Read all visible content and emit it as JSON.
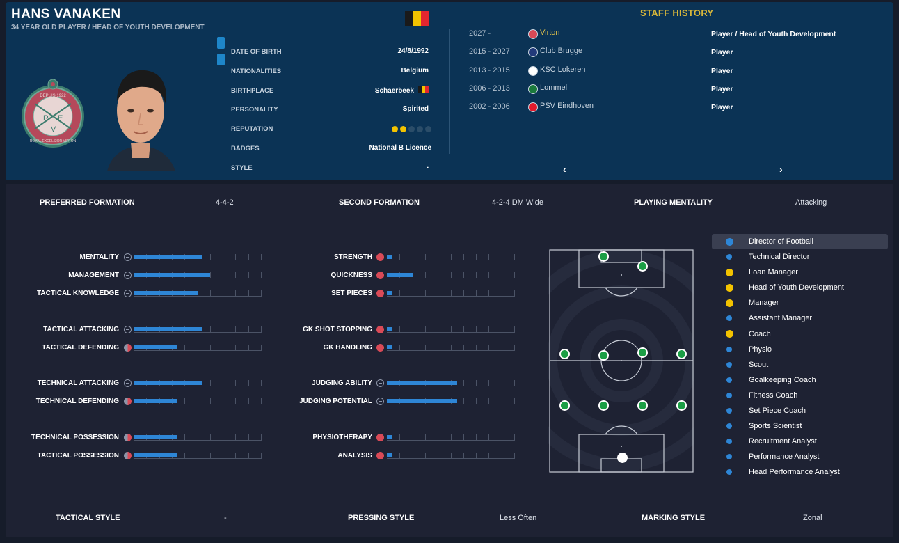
{
  "player": {
    "name": "HANS VANAKEN",
    "subtitle": "34 YEAR OLD PLAYER / HEAD OF YOUTH DEVELOPMENT"
  },
  "club_badge": {
    "icon": "club-crest-icon",
    "top_text": "DEPUIS 1922",
    "bottom_text": "ROYAL EXCELSIOR VIRTON",
    "letters": [
      "R",
      "E",
      "V"
    ],
    "colors": {
      "ring": "#3c7c6d",
      "inner": "#b5495b"
    }
  },
  "flag_colors": [
    "#1a1a1a",
    "#f2c200",
    "#e3262f"
  ],
  "bio": [
    {
      "label": "DATE OF BIRTH",
      "value": "24/8/1992"
    },
    {
      "label": "NATIONALITIES",
      "value": "Belgium"
    },
    {
      "label": "BIRTHPLACE",
      "value": "Schaerbeek"
    },
    {
      "label": "PERSONALITY",
      "value": "Spirited"
    },
    {
      "label": "REPUTATION",
      "value": "",
      "stars_on": 2,
      "stars_total": 5
    },
    {
      "label": "BADGES",
      "value": "National B Licence"
    },
    {
      "label": "STYLE",
      "value": "-"
    }
  ],
  "history": {
    "title": "STAFF HISTORY",
    "rows": [
      {
        "years": "2027 -",
        "club": "Virton",
        "role": "Player / Head of Youth Development",
        "crest": "#d94a57",
        "current": true
      },
      {
        "years": "2015 - 2027",
        "club": "Club Brugge",
        "role": "Player",
        "crest": "#223a7a",
        "current": false
      },
      {
        "years": "2013 - 2015",
        "club": "KSC Lokeren",
        "role": "Player",
        "crest": "#ffffff",
        "current": false
      },
      {
        "years": "2006 - 2013",
        "club": "Lommel",
        "role": "Player",
        "crest": "#1b7a3c",
        "current": false
      },
      {
        "years": "2002 - 2006",
        "club": "PSV Eindhoven",
        "role": "Player",
        "crest": "#e21b2c",
        "current": false
      }
    ],
    "prev_icon": "‹",
    "next_icon": "›"
  },
  "summary": {
    "preferred_formation_label": "PREFERRED FORMATION",
    "preferred_formation": "4-4-2",
    "second_formation_label": "SECOND FORMATION",
    "second_formation": "4-2-4 DM Wide",
    "playing_mentality_label": "PLAYING MENTALITY",
    "playing_mentality": "Attacking",
    "tactical_style_label": "TACTICAL STYLE",
    "tactical_style": "-",
    "pressing_style_label": "PRESSING STYLE",
    "pressing_style": "Less Often",
    "marking_style_label": "MARKING STYLE",
    "marking_style": "Zonal"
  },
  "attributes_left": [
    {
      "label": "MENTALITY",
      "level": 0.53,
      "icon": "neutral"
    },
    {
      "label": "MANAGEMENT",
      "level": 0.6,
      "icon": "neutral"
    },
    {
      "label": "TACTICAL KNOWLEDGE",
      "level": 0.5,
      "icon": "neutral"
    },
    {
      "label": "TACTICAL ATTACKING",
      "level": 0.53,
      "icon": "neutral"
    },
    {
      "label": "TACTICAL DEFENDING",
      "level": 0.34,
      "icon": "half"
    },
    {
      "label": "TECHNICAL ATTACKING",
      "level": 0.53,
      "icon": "neutral"
    },
    {
      "label": "TECHNICAL DEFENDING",
      "level": 0.34,
      "icon": "half"
    },
    {
      "label": "TECHNICAL POSSESSION",
      "level": 0.34,
      "icon": "half"
    },
    {
      "label": "TACTICAL POSSESSION",
      "level": 0.34,
      "icon": "half"
    }
  ],
  "attributes_right": [
    {
      "label": "STRENGTH",
      "level": 0.04,
      "icon": "red"
    },
    {
      "label": "QUICKNESS",
      "level": 0.2,
      "icon": "red"
    },
    {
      "label": "SET PIECES",
      "level": 0.04,
      "icon": "red"
    },
    {
      "label": "GK SHOT STOPPING",
      "level": 0.04,
      "icon": "red"
    },
    {
      "label": "GK HANDLING",
      "level": 0.04,
      "icon": "red"
    },
    {
      "label": "JUDGING ABILITY",
      "level": 0.55,
      "icon": "neutral"
    },
    {
      "label": "JUDGING POTENTIAL",
      "level": 0.55,
      "icon": "neutral"
    },
    {
      "label": "PHYSIOTHERAPY",
      "level": 0.04,
      "icon": "red"
    },
    {
      "label": "ANALYSIS",
      "level": 0.04,
      "icon": "red"
    }
  ],
  "roles": [
    {
      "label": "Director of Football",
      "selected": true,
      "color": "#2e86d6",
      "big": true
    },
    {
      "label": "Technical Director",
      "selected": false,
      "color": "#2e86d6",
      "big": false
    },
    {
      "label": "Loan Manager",
      "selected": false,
      "color": "#f3c300",
      "big": true
    },
    {
      "label": "Head of Youth Development",
      "selected": false,
      "color": "#f3c300",
      "big": true
    },
    {
      "label": "Manager",
      "selected": false,
      "color": "#f3c300",
      "big": true
    },
    {
      "label": "Assistant Manager",
      "selected": false,
      "color": "#2e86d6",
      "big": false
    },
    {
      "label": "Coach",
      "selected": false,
      "color": "#f3c300",
      "big": true
    },
    {
      "label": "Physio",
      "selected": false,
      "color": "#2e86d6",
      "big": false
    },
    {
      "label": "Scout",
      "selected": false,
      "color": "#2e86d6",
      "big": false
    },
    {
      "label": "Goalkeeping Coach",
      "selected": false,
      "color": "#2e86d6",
      "big": false
    },
    {
      "label": "Fitness Coach",
      "selected": false,
      "color": "#2e86d6",
      "big": false
    },
    {
      "label": "Set Piece Coach",
      "selected": false,
      "color": "#2e86d6",
      "big": false
    },
    {
      "label": "Sports Scientist",
      "selected": false,
      "color": "#2e86d6",
      "big": false
    },
    {
      "label": "Recruitment Analyst",
      "selected": false,
      "color": "#2e86d6",
      "big": false
    },
    {
      "label": "Performance Analyst",
      "selected": false,
      "color": "#2e86d6",
      "big": false
    },
    {
      "label": "Head Performance Analyst",
      "selected": false,
      "color": "#2e86d6",
      "big": false
    }
  ]
}
